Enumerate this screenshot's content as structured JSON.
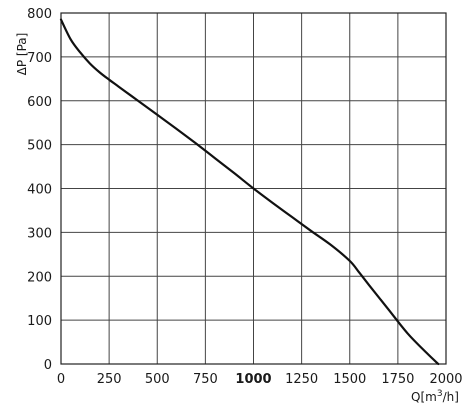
{
  "chart_data": {
    "type": "line",
    "xlabel_base": "Q[m",
    "xlabel_sup": "3",
    "xlabel_tail": "/h]",
    "ylabel": "ΔP [Pa]",
    "xlim": [
      0,
      2000
    ],
    "ylim": [
      0,
      800
    ],
    "x_ticks": [
      0,
      250,
      500,
      750,
      1000,
      1250,
      1500,
      1750,
      2000
    ],
    "x_tick_labels": [
      "0",
      "250",
      "500",
      "750",
      "1000",
      "1250",
      "1500",
      "1750",
      "2000"
    ],
    "y_ticks": [
      0,
      100,
      200,
      300,
      400,
      500,
      600,
      700,
      800
    ],
    "y_tick_labels": [
      "0",
      "100",
      "200",
      "300",
      "400",
      "500",
      "600",
      "700",
      "800"
    ],
    "grid": true,
    "series": [
      {
        "x": [
          0,
          50,
          100,
          150,
          200,
          250,
          300,
          400,
          500,
          600,
          700,
          800,
          900,
          1000,
          1100,
          1200,
          1300,
          1400,
          1500,
          1550,
          1600,
          1700,
          1800,
          1900,
          1960
        ],
        "y": [
          785,
          740,
          710,
          685,
          665,
          648,
          632,
          600,
          568,
          536,
          503,
          469,
          435,
          400,
          367,
          335,
          303,
          272,
          235,
          208,
          180,
          125,
          70,
          25,
          0
        ]
      }
    ]
  }
}
